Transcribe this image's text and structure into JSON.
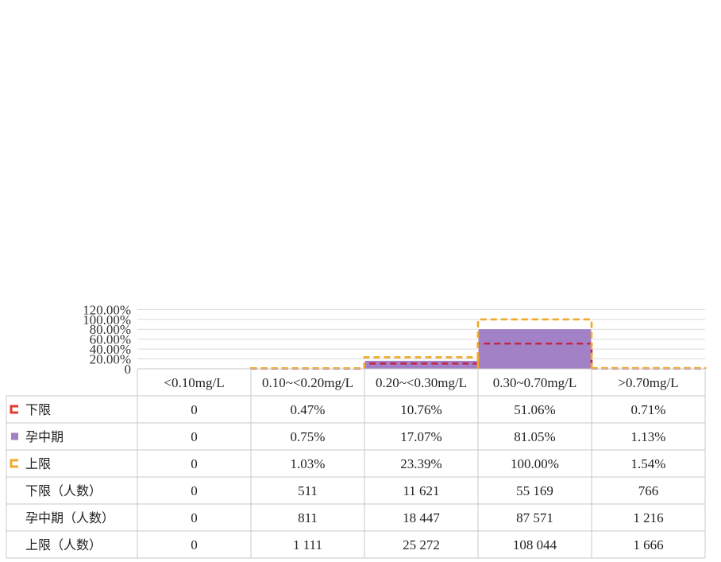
{
  "chart_data": {
    "type": "bar",
    "categories": [
      "<0.10mg/L",
      "0.10~<0.20mg/L",
      "0.20~<0.30mg/L",
      "0.30~0.70mg/L",
      ">0.70mg/L"
    ],
    "ylim": [
      0,
      120
    ],
    "y_ticks": [
      "0",
      "20.00%",
      "40.00%",
      "60.00%",
      "80.00%",
      "100.00%",
      "120.00%"
    ],
    "y_tick_values": [
      0,
      20,
      40,
      60,
      80,
      100,
      120
    ],
    "grid": true,
    "legend": "in-table",
    "series": [
      {
        "name": "下限",
        "type": "step-dashed",
        "color": "#c0264a",
        "legend_color": "#e33a2e",
        "values": [
          0,
          0.47,
          10.76,
          51.06,
          0.71
        ],
        "labels": [
          "0",
          "0.47%",
          "10.76%",
          "51.06%",
          "0.71%"
        ]
      },
      {
        "name": "孕中期",
        "type": "bar",
        "color": "#a381c6",
        "values": [
          0,
          0.75,
          17.07,
          81.05,
          1.13
        ],
        "labels": [
          "0",
          "0.75%",
          "17.07%",
          "81.05%",
          "1.13%"
        ]
      },
      {
        "name": "上限",
        "type": "step-dashed",
        "color": "#f0a92a",
        "values": [
          0,
          1.03,
          23.39,
          100.0,
          1.54
        ],
        "labels": [
          "0",
          "1.03%",
          "23.39%",
          "100.00%",
          "1.54%"
        ]
      }
    ],
    "table_rows": [
      {
        "name": "下限（人数）",
        "values": [
          "0",
          "511",
          "11 621",
          "55 169",
          "766"
        ]
      },
      {
        "name": "孕中期（人数）",
        "values": [
          "0",
          "811",
          "18 447",
          "87 571",
          "1 216"
        ]
      },
      {
        "name": "上限（人数）",
        "values": [
          "0",
          "1 111",
          "25 272",
          "108 044",
          "1 666"
        ]
      }
    ]
  }
}
